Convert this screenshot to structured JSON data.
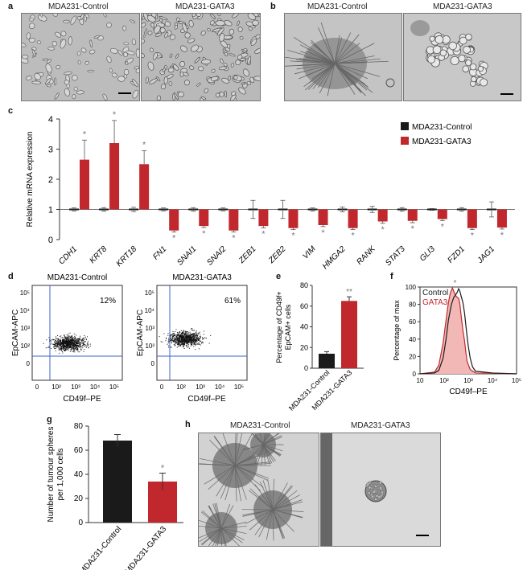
{
  "panels": {
    "a": {
      "label": "a",
      "titles": [
        "MDA231-Control",
        "MDA231-GATA3"
      ]
    },
    "b": {
      "label": "b",
      "titles": [
        "MDA231-Control",
        "MDA231-GATA3"
      ]
    },
    "c": {
      "label": "c"
    },
    "d": {
      "label": "d",
      "titles": [
        "MDA231-Control",
        "MDA231-GATA3"
      ],
      "percents": [
        "12%",
        "61%"
      ],
      "ylabel": "EpCAM-APC",
      "xlabel": "CD49f–PE"
    },
    "e": {
      "label": "e"
    },
    "f": {
      "label": "f"
    },
    "g": {
      "label": "g"
    },
    "h": {
      "label": "h",
      "titles": [
        "MDA231-Control",
        "MDA231-GATA3"
      ]
    }
  },
  "colors": {
    "control": "#1a1a1a",
    "gata3": "#c0282d",
    "gata3_fill": "#f2b8b6",
    "gate": "#3f63c9"
  },
  "chart_data": [
    {
      "id": "c",
      "type": "bar",
      "ylabel": "Relative mRNA expression",
      "ylim": [
        0,
        4
      ],
      "yticks": [
        0,
        1,
        2,
        3,
        4
      ],
      "categories": [
        "CDH1",
        "KRT8",
        "KRT18",
        "FN1",
        "SNAI1",
        "SNAI2",
        "ZEB1",
        "ZEB2",
        "VIM",
        "HMGA2",
        "RANK",
        "STAT3",
        "GLI3",
        "FZD1",
        "JAG1"
      ],
      "series": [
        {
          "name": "MDA231-Control",
          "values": [
            1,
            1,
            1,
            1,
            1,
            1,
            1,
            1,
            1,
            1,
            1,
            1,
            1,
            1,
            1
          ],
          "errors": [
            0.05,
            0.06,
            0.07,
            0.05,
            0.06,
            0.05,
            0.3,
            0.3,
            0.05,
            0.08,
            0.1,
            0.06,
            0.03,
            0.06,
            0.25
          ]
        },
        {
          "name": "MDA231-GATA3",
          "values": [
            2.65,
            3.2,
            2.5,
            0.3,
            0.45,
            0.3,
            0.45,
            0.38,
            0.48,
            0.38,
            0.6,
            0.62,
            0.68,
            0.38,
            0.4
          ],
          "errors": [
            0.65,
            0.75,
            0.45,
            0.05,
            0.05,
            0.05,
            0.06,
            0.05,
            0.05,
            0.05,
            0.06,
            0.06,
            0.05,
            0.05,
            0.05
          ]
        }
      ],
      "significance": [
        "*",
        "*",
        "*",
        "*",
        "*",
        "*",
        "*",
        "*",
        "*",
        "*",
        "*",
        "*",
        "*",
        "*",
        "*"
      ],
      "legend": "top-right"
    },
    {
      "id": "e",
      "type": "bar",
      "ylabel": "Percentage of CD49f+ EpCAM+ cells",
      "ylim": [
        0,
        80
      ],
      "yticks": [
        0,
        20,
        40,
        60,
        80
      ],
      "categories": [
        "MDA231-Control",
        "MDA231-GATA3"
      ],
      "values": [
        14,
        65
      ],
      "errors": [
        2,
        4
      ],
      "significance": [
        "",
        "**"
      ]
    },
    {
      "id": "f",
      "type": "area",
      "ylabel": "Percentage of max",
      "xlabel": "CD49f–PE",
      "xscale": "log",
      "xlim": [
        10,
        100000
      ],
      "ylim": [
        0,
        100
      ],
      "yticks": [
        0,
        20,
        40,
        60,
        80,
        100
      ],
      "xtick_labels": [
        "10",
        "10²",
        "10³",
        "10⁴",
        "10⁵"
      ],
      "series": [
        {
          "name": "Control",
          "x": [
            10,
            40,
            60,
            90,
            120,
            150,
            200,
            250,
            300,
            350,
            400,
            450,
            500,
            600,
            700,
            800,
            900,
            1000,
            1200,
            1500,
            2000,
            10000,
            100000
          ],
          "y": [
            0,
            1,
            4,
            18,
            40,
            62,
            80,
            88,
            91,
            94,
            98,
            95,
            90,
            82,
            70,
            55,
            42,
            32,
            18,
            8,
            3,
            1,
            0
          ]
        },
        {
          "name": "GATA3",
          "x": [
            10,
            40,
            60,
            90,
            120,
            150,
            180,
            200,
            220,
            250,
            300,
            350,
            400,
            450,
            500,
            600,
            700,
            800,
            900,
            1200,
            2000,
            100000
          ],
          "y": [
            0,
            2,
            10,
            35,
            62,
            82,
            93,
            96,
            99,
            95,
            90,
            88,
            87,
            80,
            68,
            50,
            38,
            24,
            14,
            5,
            1,
            0
          ]
        }
      ],
      "significance": "*"
    },
    {
      "id": "g",
      "type": "bar",
      "ylabel": "Number of tumour spheres per 1,000 cells",
      "ylim": [
        0,
        80
      ],
      "yticks": [
        0,
        20,
        40,
        60,
        80
      ],
      "categories": [
        "MDA231-Control",
        "MDA231-GATA3"
      ],
      "values": [
        68,
        34
      ],
      "errors": [
        5,
        7
      ],
      "significance": [
        "",
        "*"
      ]
    }
  ]
}
